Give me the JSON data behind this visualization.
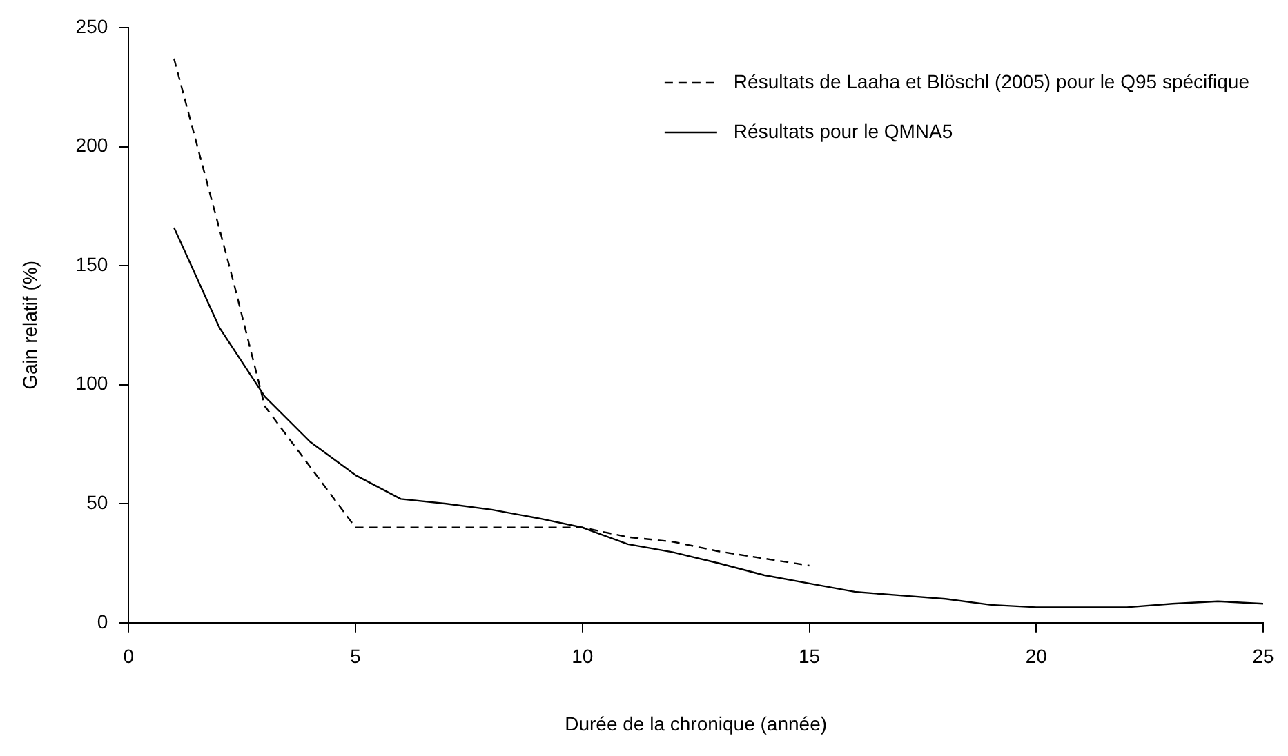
{
  "chart_data": {
    "type": "line",
    "xlabel": "Durée de la chronique (année)",
    "ylabel": "Gain relatif (%)",
    "xlim": [
      0,
      25
    ],
    "ylim": [
      0,
      250
    ],
    "xticks": [
      0,
      5,
      10,
      15,
      20,
      25
    ],
    "yticks": [
      0,
      50,
      100,
      150,
      200,
      250
    ],
    "grid": false,
    "legend": "top right",
    "marker": "none",
    "series": [
      {
        "name": "Résultats de Laaha et Blöschl (2005) pour le Q95 spécifique",
        "color": "#000000",
        "line_style": "dashed",
        "x": [
          1,
          2.3,
          3,
          5,
          10,
          11,
          12,
          13,
          14,
          15
        ],
        "values": [
          237,
          144,
          91,
          40,
          40,
          36,
          34,
          30,
          27,
          24
        ]
      },
      {
        "name": "Résultats pour le QMNA5",
        "color": "#000000",
        "line_style": "solid",
        "x": [
          1,
          2,
          3,
          4,
          5,
          6,
          7,
          8,
          9,
          10,
          11,
          12,
          13,
          14,
          15,
          16,
          17,
          18,
          19,
          20,
          21,
          22,
          23,
          24,
          25
        ],
        "values": [
          166,
          124,
          95,
          76,
          62,
          52,
          50,
          47.5,
          44,
          40,
          33,
          29.6,
          25,
          20,
          16.5,
          13,
          11.5,
          10,
          7.5,
          6.5,
          6.5,
          6.5,
          8,
          9,
          8
        ]
      }
    ]
  }
}
